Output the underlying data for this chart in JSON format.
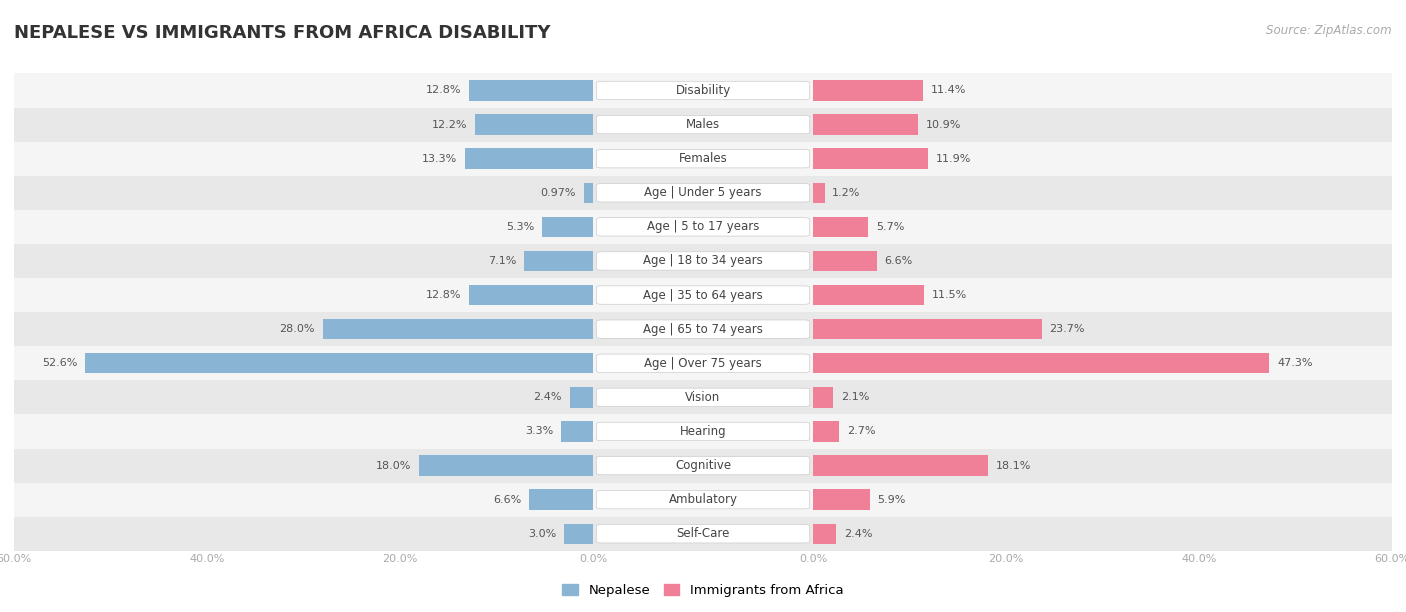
{
  "title": "NEPALESE VS IMMIGRANTS FROM AFRICA DISABILITY",
  "source": "Source: ZipAtlas.com",
  "categories": [
    "Disability",
    "Males",
    "Females",
    "Age | Under 5 years",
    "Age | 5 to 17 years",
    "Age | 18 to 34 years",
    "Age | 35 to 64 years",
    "Age | 65 to 74 years",
    "Age | Over 75 years",
    "Vision",
    "Hearing",
    "Cognitive",
    "Ambulatory",
    "Self-Care"
  ],
  "nepalese": [
    12.8,
    12.2,
    13.3,
    0.97,
    5.3,
    7.1,
    12.8,
    28.0,
    52.6,
    2.4,
    3.3,
    18.0,
    6.6,
    3.0
  ],
  "africa": [
    11.4,
    10.9,
    11.9,
    1.2,
    5.7,
    6.6,
    11.5,
    23.7,
    47.3,
    2.1,
    2.7,
    18.1,
    5.9,
    2.4
  ],
  "nepalese_labels": [
    "12.8%",
    "12.2%",
    "13.3%",
    "0.97%",
    "5.3%",
    "7.1%",
    "12.8%",
    "28.0%",
    "52.6%",
    "2.4%",
    "3.3%",
    "18.0%",
    "6.6%",
    "3.0%"
  ],
  "africa_labels": [
    "11.4%",
    "10.9%",
    "11.9%",
    "1.2%",
    "5.7%",
    "6.6%",
    "11.5%",
    "23.7%",
    "47.3%",
    "2.1%",
    "2.7%",
    "18.1%",
    "5.9%",
    "2.4%"
  ],
  "nepalese_color": "#8ab4d4",
  "africa_color": "#f08098",
  "bar_height": 0.6,
  "xlim": 60.0,
  "title_fontsize": 13,
  "label_fontsize": 8.5,
  "value_fontsize": 8,
  "legend_fontsize": 9.5,
  "source_fontsize": 8.5,
  "row_colors": [
    "#f5f5f5",
    "#e8e8e8"
  ],
  "nepalese_legend": "Nepalese",
  "africa_legend": "Immigrants from Africa",
  "xtick_labels": [
    "60.0%",
    "40.0%",
    "20.0%",
    "0.0%",
    "20.0%",
    "40.0%",
    "60.0%"
  ]
}
